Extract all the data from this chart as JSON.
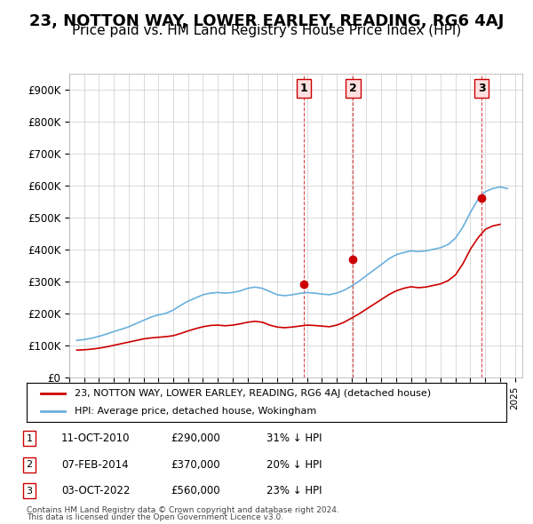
{
  "title": "23, NOTTON WAY, LOWER EARLEY, READING, RG6 4AJ",
  "subtitle": "Price paid vs. HM Land Registry's House Price Index (HPI)",
  "title_fontsize": 13,
  "subtitle_fontsize": 11,
  "background_color": "#ffffff",
  "grid_color": "#cccccc",
  "hpi_color": "#6ab0de",
  "price_color": "#cc0000",
  "marker_line_color": "#cc0000",
  "marker_bg_color": "#ffe0e0",
  "ylabel": "",
  "purchases": [
    {
      "date_num": 2010.79,
      "price": 290000,
      "label": "1",
      "date_str": "11-OCT-2010",
      "pct": "31% ↓ HPI"
    },
    {
      "date_num": 2014.1,
      "price": 370000,
      "label": "2",
      "date_str": "07-FEB-2014",
      "pct": "20% ↓ HPI"
    },
    {
      "date_num": 2022.76,
      "price": 560000,
      "label": "3",
      "date_str": "03-OCT-2022",
      "pct": "23% ↓ HPI"
    }
  ],
  "legend_entries": [
    "23, NOTTON WAY, LOWER EARLEY, READING, RG6 4AJ (detached house)",
    "HPI: Average price, detached house, Wokingham"
  ],
  "footnote1": "Contains HM Land Registry data © Crown copyright and database right 2024.",
  "footnote2": "This data is licensed under the Open Government Licence v3.0.",
  "xmin": 1995,
  "xmax": 2025.5,
  "ymin": 0,
  "ymax": 950000,
  "yticks": [
    0,
    100000,
    200000,
    300000,
    400000,
    500000,
    600000,
    700000,
    800000,
    900000
  ],
  "ytick_labels": [
    "£0",
    "£100K",
    "£200K",
    "£300K",
    "£400K",
    "£500K",
    "£600K",
    "£700K",
    "£800K",
    "£900K"
  ],
  "hpi_years": [
    1995.5,
    1996.0,
    1996.5,
    1997.0,
    1997.5,
    1998.0,
    1998.5,
    1999.0,
    1999.5,
    2000.0,
    2000.5,
    2001.0,
    2001.5,
    2002.0,
    2002.5,
    2003.0,
    2003.5,
    2004.0,
    2004.5,
    2005.0,
    2005.5,
    2006.0,
    2006.5,
    2007.0,
    2007.5,
    2008.0,
    2008.5,
    2009.0,
    2009.5,
    2010.0,
    2010.5,
    2011.0,
    2011.5,
    2012.0,
    2012.5,
    2013.0,
    2013.5,
    2014.0,
    2014.5,
    2015.0,
    2015.5,
    2016.0,
    2016.5,
    2017.0,
    2017.5,
    2018.0,
    2018.5,
    2019.0,
    2019.5,
    2020.0,
    2020.5,
    2021.0,
    2021.5,
    2022.0,
    2022.5,
    2023.0,
    2023.5,
    2024.0,
    2024.5
  ],
  "hpi_values": [
    115000,
    118000,
    122000,
    128000,
    135000,
    143000,
    150000,
    158000,
    168000,
    178000,
    188000,
    195000,
    200000,
    210000,
    225000,
    238000,
    248000,
    258000,
    263000,
    265000,
    263000,
    265000,
    270000,
    278000,
    282000,
    278000,
    268000,
    258000,
    255000,
    258000,
    262000,
    265000,
    263000,
    260000,
    258000,
    263000,
    272000,
    285000,
    300000,
    318000,
    335000,
    352000,
    370000,
    383000,
    390000,
    395000,
    393000,
    395000,
    400000,
    405000,
    415000,
    435000,
    470000,
    515000,
    555000,
    580000,
    590000,
    595000,
    590000
  ],
  "price_years": [
    1995.5,
    1996.0,
    1996.5,
    1997.0,
    1997.5,
    1998.0,
    1998.5,
    1999.0,
    1999.5,
    2000.0,
    2000.5,
    2001.0,
    2001.5,
    2002.0,
    2002.5,
    2003.0,
    2003.5,
    2004.0,
    2004.5,
    2005.0,
    2005.5,
    2006.0,
    2006.5,
    2007.0,
    2007.5,
    2008.0,
    2008.5,
    2009.0,
    2009.5,
    2010.0,
    2010.5,
    2011.0,
    2011.5,
    2012.0,
    2012.5,
    2013.0,
    2013.5,
    2014.0,
    2014.5,
    2015.0,
    2015.5,
    2016.0,
    2016.5,
    2017.0,
    2017.5,
    2018.0,
    2018.5,
    2019.0,
    2019.5,
    2020.0,
    2020.5,
    2021.0,
    2021.5,
    2022.0,
    2022.5,
    2023.0,
    2023.5,
    2024.0
  ],
  "price_values": [
    85000,
    86000,
    88000,
    91000,
    95000,
    100000,
    105000,
    110000,
    115000,
    120000,
    123000,
    125000,
    127000,
    130000,
    137000,
    145000,
    152000,
    158000,
    162000,
    163000,
    161000,
    163000,
    167000,
    172000,
    175000,
    172000,
    163000,
    157000,
    155000,
    157000,
    160000,
    163000,
    162000,
    160000,
    158000,
    163000,
    172000,
    185000,
    198000,
    213000,
    228000,
    243000,
    258000,
    270000,
    278000,
    283000,
    280000,
    282000,
    287000,
    292000,
    302000,
    320000,
    355000,
    400000,
    435000,
    462000,
    473000,
    478000
  ]
}
